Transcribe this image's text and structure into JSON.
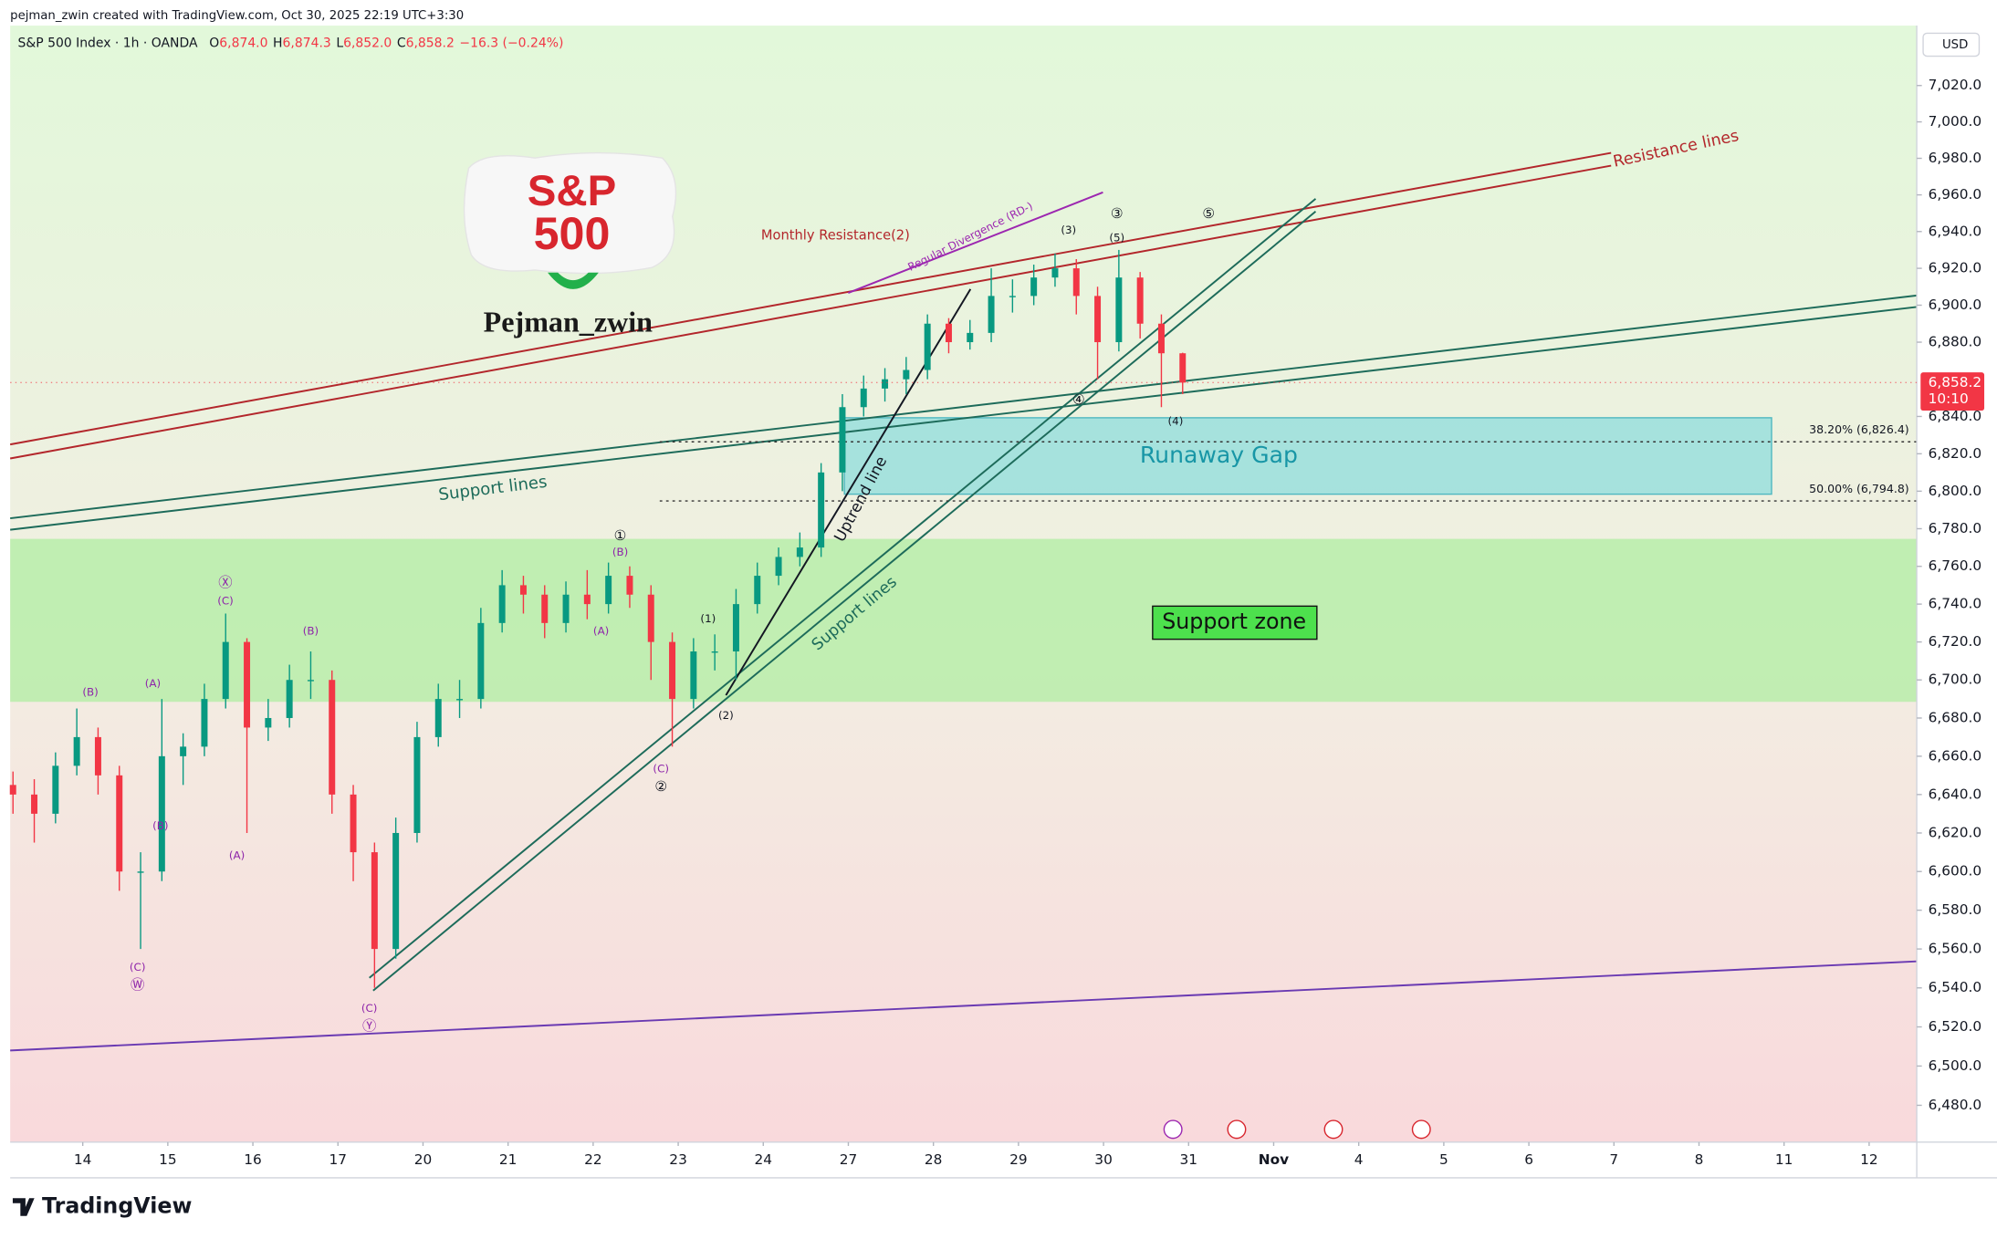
{
  "credit": "pejman_zwin created with TradingView.com, Oct 30, 2025 22:19 UTC+3:30",
  "footer": "TradingView",
  "chart_data": {
    "type": "candlestick",
    "title": "S&P 500 Index · 1h · OANDA",
    "ohlc_legend": [
      {
        "key": "O",
        "value": "6,874.0"
      },
      {
        "key": "H",
        "value": "6,874.3"
      },
      {
        "key": "L",
        "value": "6,852.0"
      },
      {
        "key": "C",
        "value": "6,858.2"
      }
    ],
    "change": "−16.3 (−0.24%)",
    "currency": "USD",
    "x": [
      -0.82,
      -0.57,
      -0.32,
      -0.07,
      0.18,
      0.43,
      0.68,
      0.93,
      1.18,
      1.43,
      1.68,
      1.93,
      2.18,
      2.43,
      2.68,
      2.93,
      3.18,
      3.43,
      3.68,
      3.93,
      4.18,
      4.43,
      4.68,
      4.93,
      5.18,
      5.43,
      5.68,
      5.93,
      6.18,
      6.43,
      6.68,
      6.93,
      7.18,
      7.43,
      7.68,
      7.93,
      8.18,
      8.43,
      8.68,
      8.93,
      9.18,
      9.43,
      9.68,
      9.93,
      10.18,
      10.43,
      10.68,
      10.93,
      11.18,
      11.43,
      11.68,
      11.93,
      12.18,
      12.43,
      12.68,
      12.93
    ],
    "open": [
      6645,
      6640,
      6630,
      6655,
      6670,
      6650,
      6600,
      6600,
      6660,
      6665,
      6690,
      6720,
      6675,
      6680,
      6700,
      6700,
      6640,
      6610,
      6560,
      6620,
      6670,
      6690,
      6690,
      6730,
      6750,
      6745,
      6730,
      6745,
      6740,
      6755,
      6745,
      6720,
      6690,
      6715,
      6715,
      6740,
      6755,
      6765,
      6770,
      6810,
      6845,
      6855,
      6860,
      6865,
      6890,
      6880,
      6885,
      6905,
      6905,
      6915,
      6920,
      6905,
      6880,
      6915,
      6890,
      6874
    ],
    "high": [
      6652,
      6648,
      6662,
      6685,
      6675,
      6655,
      6610,
      6690,
      6672,
      6698,
      6735,
      6722,
      6690,
      6708,
      6715,
      6705,
      6645,
      6615,
      6628,
      6678,
      6698,
      6700,
      6738,
      6758,
      6755,
      6750,
      6752,
      6758,
      6762,
      6760,
      6750,
      6725,
      6722,
      6724,
      6748,
      6762,
      6770,
      6778,
      6815,
      6852,
      6862,
      6866,
      6872,
      6895,
      6893,
      6892,
      6920,
      6914,
      6922,
      6928,
      6925,
      6910,
      6930,
      6918,
      6895,
      6874.3
    ],
    "low": [
      6630,
      6615,
      6625,
      6650,
      6640,
      6590,
      6560,
      6595,
      6645,
      6660,
      6685,
      6620,
      6668,
      6675,
      6690,
      6630,
      6595,
      6540,
      6555,
      6615,
      6665,
      6680,
      6685,
      6725,
      6735,
      6722,
      6725,
      6732,
      6735,
      6738,
      6700,
      6665,
      6685,
      6705,
      6700,
      6735,
      6750,
      6760,
      6765,
      6800,
      6840,
      6848,
      6852,
      6860,
      6874,
      6876,
      6880,
      6896,
      6900,
      6910,
      6895,
      6860,
      6875,
      6882,
      6845,
      6852
    ],
    "close": [
      6640,
      6630,
      6655,
      6670,
      6650,
      6600,
      6600,
      6660,
      6665,
      6690,
      6720,
      6675,
      6680,
      6700,
      6700,
      6640,
      6610,
      6560,
      6620,
      6670,
      6690,
      6690,
      6730,
      6750,
      6745,
      6730,
      6745,
      6740,
      6755,
      6745,
      6720,
      6690,
      6715,
      6715,
      6740,
      6755,
      6765,
      6770,
      6810,
      6845,
      6855,
      6860,
      6865,
      6890,
      6880,
      6885,
      6905,
      6905,
      6915,
      6920,
      6905,
      6880,
      6915,
      6890,
      6874,
      6858.2
    ],
    "up_color": "#089981",
    "down_color": "#f23645",
    "xlim": [
      -0.853,
      21.56
    ],
    "xticks": [
      {
        "value": 0,
        "label": "14"
      },
      {
        "value": 1,
        "label": "15"
      },
      {
        "value": 2,
        "label": "16"
      },
      {
        "value": 3,
        "label": "17"
      },
      {
        "value": 4,
        "label": "20"
      },
      {
        "value": 5,
        "label": "21"
      },
      {
        "value": 6,
        "label": "22"
      },
      {
        "value": 7,
        "label": "23"
      },
      {
        "value": 8,
        "label": "24"
      },
      {
        "value": 9,
        "label": "27"
      },
      {
        "value": 10,
        "label": "28"
      },
      {
        "value": 11,
        "label": "29"
      },
      {
        "value": 12,
        "label": "30"
      },
      {
        "value": 13,
        "label": "31"
      },
      {
        "value": 14,
        "label": "Nov"
      },
      {
        "value": 15,
        "label": "4"
      },
      {
        "value": 16,
        "label": "5"
      },
      {
        "value": 17,
        "label": "6"
      },
      {
        "value": 18,
        "label": "7"
      },
      {
        "value": 19,
        "label": "8"
      },
      {
        "value": 20,
        "label": "11"
      },
      {
        "value": 21,
        "label": "12"
      }
    ],
    "ylim": [
      6461.3,
      7053.1
    ],
    "log_scale": true,
    "yticks": [
      {
        "value": 6480,
        "label": "6,480.0"
      },
      {
        "value": 6500,
        "label": "6,500.0"
      },
      {
        "value": 6520,
        "label": "6,520.0"
      },
      {
        "value": 6540,
        "label": "6,540.0"
      },
      {
        "value": 6560,
        "label": "6,560.0"
      },
      {
        "value": 6580,
        "label": "6,580.0"
      },
      {
        "value": 6600,
        "label": "6,600.0"
      },
      {
        "value": 6620,
        "label": "6,620.0"
      },
      {
        "value": 6640,
        "label": "6,640.0"
      },
      {
        "value": 6660,
        "label": "6,660.0"
      },
      {
        "value": 6680,
        "label": "6,680.0"
      },
      {
        "value": 6700,
        "label": "6,700.0"
      },
      {
        "value": 6720,
        "label": "6,720.0"
      },
      {
        "value": 6740,
        "label": "6,740.0"
      },
      {
        "value": 6760,
        "label": "6,760.0"
      },
      {
        "value": 6780,
        "label": "6,780.0"
      },
      {
        "value": 6800,
        "label": "6,800.0"
      },
      {
        "value": 6820,
        "label": "6,820.0"
      },
      {
        "value": 6840,
        "label": "6,840.0"
      },
      {
        "value": 6880,
        "label": "6,880.0"
      },
      {
        "value": 6900,
        "label": "6,900.0"
      },
      {
        "value": 6920,
        "label": "6,920.0"
      },
      {
        "value": 6940,
        "label": "6,940.0"
      },
      {
        "value": 6960,
        "label": "6,960.0"
      },
      {
        "value": 6980,
        "label": "6,980.0"
      },
      {
        "value": 7000,
        "label": "7,000.0"
      },
      {
        "value": 7020,
        "label": "7,020.0"
      }
    ],
    "last_price": {
      "value": 6858.2,
      "label": "6,858.2",
      "countdown": "10:10"
    },
    "fib_levels": [
      {
        "value": 6826.4,
        "label": "38.20% (6,826.4)"
      },
      {
        "value": 6794.8,
        "label": "50.00% (6,794.8)"
      }
    ],
    "zones": [
      {
        "label": "Runaway Gap",
        "low": 6798.4,
        "high": 6839.3,
        "color": "#8ddcdc"
      },
      {
        "label": "Support zone",
        "low": 6688.5,
        "high": 6774.6,
        "color": "#b4eea6"
      }
    ],
    "annotations": [
      "Resistance lines",
      "Monthly Resistance(2)",
      "Regular Divergence (RD-)",
      "Support lines",
      "Uptrend line",
      "Support lines"
    ],
    "wave_labels": [
      "(B)",
      "(A)",
      "(B)",
      "(C)",
      "Ⓦ",
      "Ⓧ",
      "(C)",
      "(A)",
      "(B)",
      "(C)",
      "Ⓨ",
      "①",
      "(B)",
      "(A)",
      "(1)",
      "(C)",
      "②",
      "(2)",
      "(3)",
      "③",
      "(5)",
      "⑤",
      "④",
      "(4)"
    ],
    "logo": {
      "line1": "S&P",
      "line2": "500",
      "author": "Pejman_zwin"
    }
  }
}
